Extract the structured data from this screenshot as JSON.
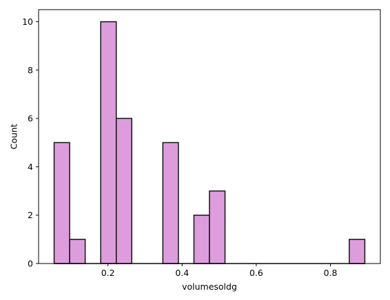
{
  "chart_data": {
    "type": "bar",
    "subtype": "histogram",
    "bins": [
      {
        "left": 0.0548,
        "right": 0.0967,
        "count": 5
      },
      {
        "left": 0.0967,
        "right": 0.1386,
        "count": 1
      },
      {
        "left": 0.1386,
        "right": 0.1805,
        "count": 0
      },
      {
        "left": 0.1805,
        "right": 0.2224,
        "count": 10
      },
      {
        "left": 0.2224,
        "right": 0.2643,
        "count": 6
      },
      {
        "left": 0.2643,
        "right": 0.3062,
        "count": 0
      },
      {
        "left": 0.3062,
        "right": 0.3481,
        "count": 0
      },
      {
        "left": 0.3481,
        "right": 0.39,
        "count": 5
      },
      {
        "left": 0.39,
        "right": 0.4319,
        "count": 0
      },
      {
        "left": 0.4319,
        "right": 0.4738,
        "count": 2
      },
      {
        "left": 0.4738,
        "right": 0.5157,
        "count": 3
      },
      {
        "left": 0.5157,
        "right": 0.5576,
        "count": 0
      },
      {
        "left": 0.5576,
        "right": 0.5995,
        "count": 0
      },
      {
        "left": 0.5995,
        "right": 0.6414,
        "count": 0
      },
      {
        "left": 0.6414,
        "right": 0.6833,
        "count": 0
      },
      {
        "left": 0.6833,
        "right": 0.7252,
        "count": 0
      },
      {
        "left": 0.7252,
        "right": 0.7671,
        "count": 0
      },
      {
        "left": 0.7671,
        "right": 0.809,
        "count": 0
      },
      {
        "left": 0.809,
        "right": 0.8509,
        "count": 0
      },
      {
        "left": 0.8509,
        "right": 0.8928,
        "count": 1
      }
    ],
    "xlabel": "volumesoldg",
    "ylabel": "Count",
    "xlim": [
      0.0129,
      0.9347
    ],
    "ylim": [
      0,
      10.5
    ],
    "xticks": [
      0.2,
      0.4,
      0.6,
      0.8
    ],
    "xtick_labels": [
      "0.2",
      "0.4",
      "0.6",
      "0.8"
    ],
    "yticks": [
      0,
      2,
      4,
      6,
      8,
      10
    ],
    "ytick_labels": [
      "0",
      "2",
      "4",
      "6",
      "8",
      "10"
    ],
    "grid": false,
    "colors": {
      "bar_fill": "#dd9ddc",
      "bar_edge": "#111111",
      "axes": "#000000"
    }
  }
}
